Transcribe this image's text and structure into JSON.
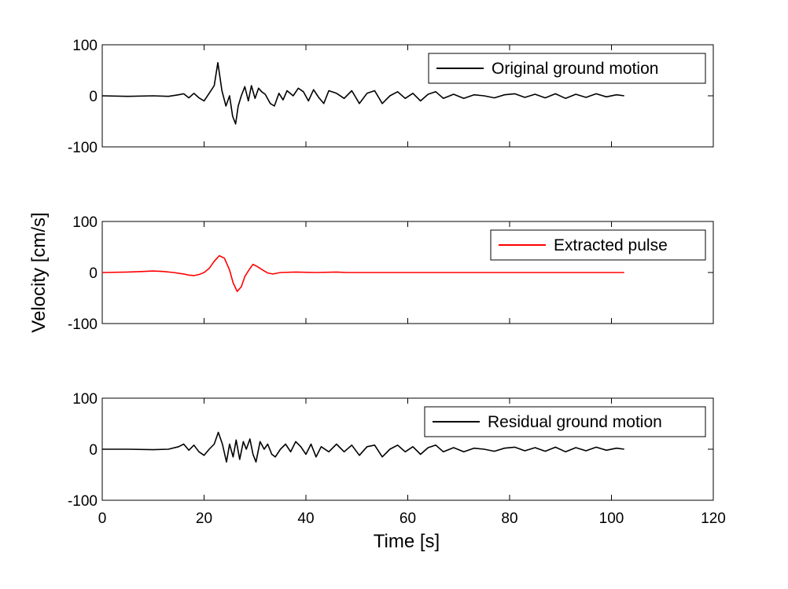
{
  "chart_data": {
    "type": "line",
    "ylabel": "Velocity [cm/s]",
    "xlabel": "Time [s]",
    "xlim": [
      0,
      120
    ],
    "xticks": [
      0,
      20,
      40,
      60,
      80,
      100,
      120
    ],
    "xtick_labels": [
      "0",
      "20",
      "40",
      "60",
      "80",
      "100",
      "120"
    ],
    "grid": false,
    "panels": [
      {
        "ylim": [
          -100,
          100
        ],
        "yticks": [
          100,
          0,
          -100
        ],
        "ytick_labels": [
          "100",
          "0",
          "-100"
        ],
        "legend": {
          "label": "Original ground motion",
          "placement": "top-right",
          "color": "#000000"
        },
        "series": {
          "name": "Original ground motion",
          "color": "#000000",
          "x": [
            0,
            5,
            10,
            13,
            15,
            16,
            17,
            18,
            19,
            20,
            21,
            22,
            22.7,
            23.5,
            24.3,
            25,
            25.6,
            26.2,
            26.7,
            27.3,
            28,
            28.7,
            29.3,
            30,
            30.7,
            31.3,
            32,
            33,
            33.8,
            34.7,
            35.5,
            36.3,
            37.5,
            38.5,
            39.5,
            40.5,
            41.5,
            42.5,
            43.5,
            44.5,
            46,
            47.5,
            49,
            50.5,
            52,
            53.5,
            55,
            56.5,
            58,
            59.5,
            61,
            62.5,
            64,
            65.5,
            67,
            69,
            71,
            73,
            75,
            77,
            79,
            81,
            83,
            85,
            87,
            89,
            91,
            93,
            95,
            97,
            99,
            101,
            102.5
          ],
          "y": [
            0,
            -1,
            0,
            -1,
            2,
            4,
            -4,
            5,
            -4,
            -10,
            5,
            20,
            65,
            10,
            -20,
            0,
            -40,
            -55,
            -20,
            0,
            18,
            -10,
            20,
            -5,
            15,
            8,
            3,
            -15,
            -20,
            5,
            -8,
            10,
            0,
            15,
            8,
            -10,
            12,
            -3,
            -15,
            10,
            5,
            -5,
            10,
            -15,
            5,
            10,
            -15,
            0,
            8,
            -5,
            5,
            -10,
            3,
            8,
            -5,
            3,
            -5,
            2,
            0,
            -4,
            2,
            4,
            -3,
            3,
            -4,
            4,
            -5,
            3,
            -3,
            4,
            -2,
            2,
            0
          ]
        }
      },
      {
        "ylim": [
          -100,
          100
        ],
        "yticks": [
          100,
          0,
          -100
        ],
        "ytick_labels": [
          "100",
          "0",
          "-100"
        ],
        "legend": {
          "label": "Extracted pulse",
          "placement": "top-right",
          "color": "#ff0000"
        },
        "series": {
          "name": "Extracted pulse",
          "color": "#ff0000",
          "x": [
            0,
            5,
            8,
            10,
            12,
            14,
            16,
            17,
            18,
            19,
            20,
            21,
            22,
            23,
            24,
            25,
            25.7,
            26.5,
            27.3,
            28,
            28.8,
            29.6,
            30.4,
            31.5,
            32.5,
            33.5,
            35,
            38,
            42,
            46,
            48,
            55,
            70,
            85,
            102.5
          ],
          "y": [
            0,
            1,
            2,
            3,
            2,
            0,
            -3,
            -5,
            -6,
            -4,
            0,
            8,
            22,
            33,
            28,
            5,
            -20,
            -37,
            -28,
            -8,
            5,
            16,
            12,
            5,
            -1,
            -3,
            0,
            1,
            0,
            1,
            0,
            0,
            0,
            0,
            0
          ]
        }
      },
      {
        "ylim": [
          -100,
          100
        ],
        "yticks": [
          100,
          0,
          -100
        ],
        "ytick_labels": [
          "100",
          "0",
          "-100"
        ],
        "legend": {
          "label": "Residual ground motion",
          "placement": "top-right",
          "color": "#000000"
        },
        "series": {
          "name": "Residual ground motion",
          "color": "#000000",
          "x": [
            0,
            5,
            10,
            13,
            15,
            16,
            17,
            18,
            19,
            20,
            21,
            22,
            22.8,
            23.6,
            24.4,
            25,
            25.7,
            26.3,
            27,
            27.7,
            28.3,
            29,
            29.6,
            30.2,
            31,
            31.8,
            32.5,
            33.3,
            34,
            35,
            36,
            37,
            38,
            39,
            40,
            41,
            42,
            43,
            44.5,
            46,
            47.5,
            49,
            50.5,
            52,
            53.5,
            55,
            56.5,
            58,
            59.5,
            61,
            62.5,
            64,
            65.5,
            67,
            69,
            71,
            73,
            75,
            77,
            79,
            81,
            83,
            85,
            87,
            89,
            91,
            93,
            95,
            97,
            99,
            101,
            102.5
          ],
          "y": [
            0,
            0,
            -1,
            0,
            5,
            10,
            -2,
            8,
            -5,
            -12,
            0,
            10,
            33,
            10,
            -25,
            10,
            -15,
            18,
            -20,
            15,
            0,
            20,
            -10,
            -25,
            15,
            0,
            10,
            -10,
            -15,
            0,
            10,
            -5,
            15,
            5,
            -10,
            10,
            -15,
            5,
            -5,
            10,
            -5,
            8,
            -12,
            5,
            8,
            -15,
            0,
            8,
            -5,
            5,
            -10,
            3,
            8,
            -5,
            3,
            -5,
            2,
            0,
            -4,
            2,
            4,
            -3,
            3,
            -4,
            4,
            -5,
            3,
            -3,
            4,
            -2,
            2,
            0
          ]
        }
      }
    ]
  }
}
